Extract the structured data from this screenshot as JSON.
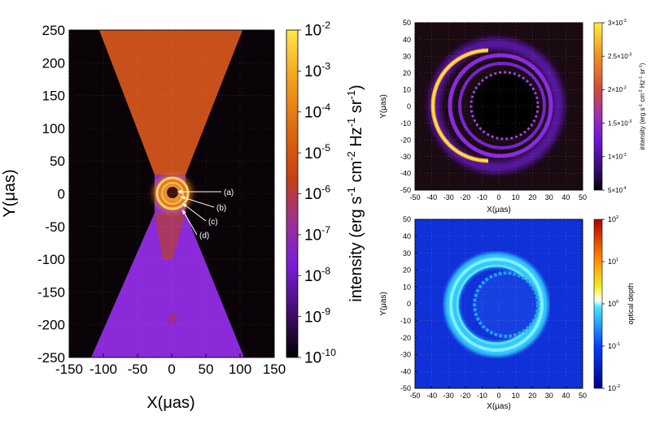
{
  "chart_data": [
    {
      "type": "heatmap",
      "panel": "left",
      "title": "",
      "xlabel": "X(μas)",
      "ylabel": "Y(μas)",
      "xlim": [
        -150,
        150
      ],
      "ylim": [
        -250,
        250
      ],
      "xticks": [
        "-150",
        "-100",
        "-50",
        "0",
        "50",
        "100",
        "150"
      ],
      "yticks": [
        "250",
        "200",
        "150",
        "100",
        "50",
        "0",
        "-50",
        "-100",
        "-150",
        "-200",
        "-250"
      ],
      "colorbar": {
        "label": "intensity (erg s-1 cm-2 Hz-1 sr-1)",
        "label_parts": [
          "intensity (erg s",
          "-1",
          " cm",
          "-2",
          " Hz",
          "-1",
          " sr",
          "-1",
          ")"
        ],
        "scale": "log",
        "ticks": [
          {
            "base": "10",
            "exp": "-2"
          },
          {
            "base": "10",
            "exp": "-3"
          },
          {
            "base": "10",
            "exp": "-4"
          },
          {
            "base": "10",
            "exp": "-5"
          },
          {
            "base": "10",
            "exp": "-6"
          },
          {
            "base": "10",
            "exp": "-7"
          },
          {
            "base": "10",
            "exp": "-8"
          },
          {
            "base": "10",
            "exp": "-9"
          },
          {
            "base": "10",
            "exp": "-10"
          }
        ],
        "colors": [
          "#ffe84a",
          "#f5a020",
          "#e06a10",
          "#c84010",
          "#a02850",
          "#8020c0",
          "#6a18d0",
          "#3a0a60",
          "#000000"
        ]
      },
      "annotations": [
        "(a)",
        "(b)",
        "(c)",
        "(d)"
      ]
    },
    {
      "type": "heatmap",
      "panel": "top-right",
      "xlabel": "X(μas)",
      "ylabel": "Y(μas)",
      "xlim": [
        -50,
        50
      ],
      "ylim": [
        -50,
        50
      ],
      "xticks": [
        "-50",
        "-40",
        "-30",
        "-20",
        "-10",
        "0",
        "10",
        "20",
        "30",
        "40",
        "50"
      ],
      "yticks": [
        "50",
        "40",
        "30",
        "20",
        "10",
        "0",
        "-10",
        "-20",
        "-30",
        "-40",
        "-50"
      ],
      "colorbar": {
        "label": "intensity (erg s-1 cm-2 Hz-1 sr-1)",
        "label_parts": [
          "intensity (erg s",
          "-1",
          " cm",
          "-2",
          " Hz",
          "-1",
          " sr",
          "-1",
          ")"
        ],
        "scale": "linear",
        "ticks": [
          {
            "base": "3×10",
            "exp": "-3"
          },
          {
            "base": "2.5×10",
            "exp": "-3"
          },
          {
            "base": "2×10",
            "exp": "-3"
          },
          {
            "base": "1.5×10",
            "exp": "-3"
          },
          {
            "base": "1×10",
            "exp": "-3"
          },
          {
            "base": "5×10",
            "exp": "-4"
          }
        ]
      }
    },
    {
      "type": "heatmap",
      "panel": "bottom-right",
      "xlabel": "X(μas)",
      "ylabel": "Y(μas)",
      "xlim": [
        -50,
        50
      ],
      "ylim": [
        -50,
        50
      ],
      "xticks": [
        "-50",
        "-40",
        "-30",
        "-20",
        "-10",
        "0",
        "10",
        "20",
        "30",
        "40",
        "50"
      ],
      "yticks": [
        "50",
        "40",
        "30",
        "20",
        "10",
        "0",
        "-10",
        "-20",
        "-30",
        "-40",
        "-50"
      ],
      "colorbar": {
        "label": "optical depth",
        "scale": "log",
        "ticks": [
          {
            "base": "10",
            "exp": "2"
          },
          {
            "base": "10",
            "exp": "1"
          },
          {
            "base": "10",
            "exp": "0"
          },
          {
            "base": "10",
            "exp": "-1"
          },
          {
            "base": "10",
            "exp": "-2"
          }
        ]
      }
    }
  ]
}
